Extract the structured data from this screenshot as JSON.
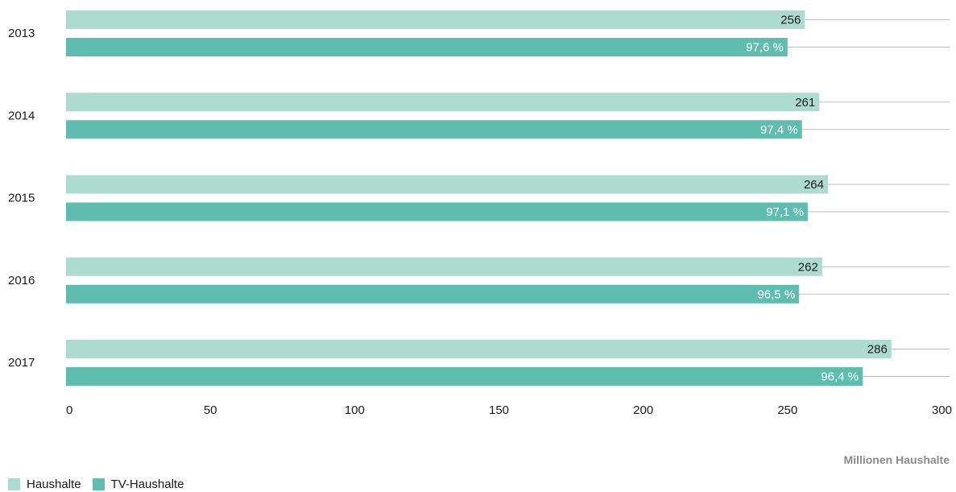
{
  "chart_data": {
    "type": "bar",
    "orientation": "horizontal",
    "categories": [
      "2013",
      "2014",
      "2015",
      "2016",
      "2017"
    ],
    "series": [
      {
        "name": "Haushalte",
        "values": [
          256,
          261,
          264,
          262,
          286
        ],
        "labels": [
          "256",
          "261",
          "264",
          "262",
          "286"
        ],
        "color": "#aedbd0"
      },
      {
        "name": "TV-Haushalte",
        "values": [
          250,
          255,
          257,
          254,
          276
        ],
        "labels": [
          "97,6 %",
          "97,4 %",
          "97,1 %",
          "96,5 %",
          "96,4 %"
        ],
        "color": "#5ebdaf"
      }
    ],
    "xlim": [
      0,
      300
    ],
    "xticks": [
      "0",
      "50",
      "100",
      "150",
      "200",
      "250",
      "300"
    ],
    "xlabel": "Millionen Haushalte",
    "grid": true,
    "legend_position": "bottom-left"
  },
  "colors": {
    "gridline": "#bdbdbd",
    "label_light": "#ffffff",
    "label_dark": "#1a1a1a"
  }
}
